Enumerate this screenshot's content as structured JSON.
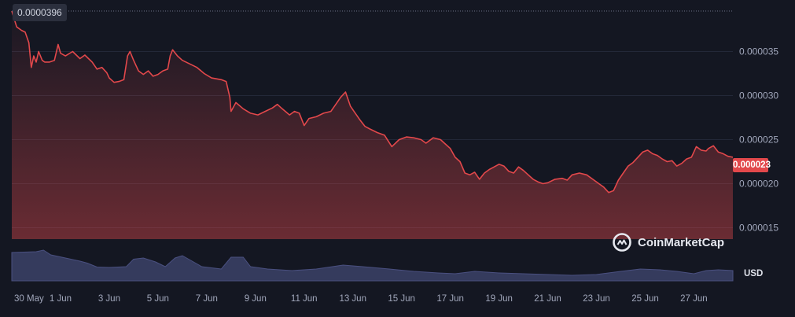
{
  "chart_data": {
    "type": "area",
    "currency": "USD",
    "max_label": "0.0000396",
    "last_label": "0.000023",
    "y_tick_labels": [
      "0.000015",
      "0.000020",
      "0.000025",
      "0.000030",
      "0.000035"
    ],
    "y_ticks": [
      1.5e-05,
      2e-05,
      2.5e-05,
      3e-05,
      3.5e-05
    ],
    "x_tick_labels": [
      "30 May",
      "1 Jun",
      "3 Jun",
      "5 Jun",
      "7 Jun",
      "9 Jun",
      "11 Jun",
      "13 Jun",
      "15 Jun",
      "17 Jun",
      "19 Jun",
      "21 Jun",
      "23 Jun",
      "25 Jun",
      "27 Jun"
    ],
    "x_range_days": [
      0,
      29.6
    ],
    "ylim": [
      1.37e-05,
      3.96e-05
    ],
    "price_series": [
      [
        0.0,
        3.96
      ],
      [
        0.2,
        3.78
      ],
      [
        0.4,
        3.74
      ],
      [
        0.55,
        3.72
      ],
      [
        0.7,
        3.6
      ],
      [
        0.8,
        3.32
      ],
      [
        0.9,
        3.45
      ],
      [
        1.0,
        3.38
      ],
      [
        1.1,
        3.5
      ],
      [
        1.25,
        3.4
      ],
      [
        1.35,
        3.38
      ],
      [
        1.55,
        3.38
      ],
      [
        1.75,
        3.4
      ],
      [
        1.9,
        3.58
      ],
      [
        2.0,
        3.48
      ],
      [
        2.2,
        3.45
      ],
      [
        2.5,
        3.5
      ],
      [
        2.8,
        3.42
      ],
      [
        3.0,
        3.46
      ],
      [
        3.3,
        3.38
      ],
      [
        3.5,
        3.3
      ],
      [
        3.7,
        3.32
      ],
      [
        3.9,
        3.26
      ],
      [
        4.0,
        3.2
      ],
      [
        4.2,
        3.15
      ],
      [
        4.4,
        3.16
      ],
      [
        4.6,
        3.18
      ],
      [
        4.75,
        3.45
      ],
      [
        4.85,
        3.5
      ],
      [
        5.0,
        3.4
      ],
      [
        5.2,
        3.28
      ],
      [
        5.4,
        3.24
      ],
      [
        5.6,
        3.28
      ],
      [
        5.8,
        3.22
      ],
      [
        6.0,
        3.24
      ],
      [
        6.2,
        3.28
      ],
      [
        6.4,
        3.3
      ],
      [
        6.5,
        3.45
      ],
      [
        6.6,
        3.52
      ],
      [
        6.8,
        3.45
      ],
      [
        7.0,
        3.4
      ],
      [
        7.3,
        3.36
      ],
      [
        7.6,
        3.32
      ],
      [
        7.9,
        3.25
      ],
      [
        8.2,
        3.2
      ],
      [
        8.6,
        3.18
      ],
      [
        8.8,
        3.16
      ],
      [
        8.95,
        2.98
      ],
      [
        9.0,
        2.82
      ],
      [
        9.2,
        2.92
      ],
      [
        9.5,
        2.85
      ],
      [
        9.8,
        2.8
      ],
      [
        10.1,
        2.78
      ],
      [
        10.4,
        2.82
      ],
      [
        10.7,
        2.86
      ],
      [
        10.9,
        2.9
      ],
      [
        11.1,
        2.85
      ],
      [
        11.4,
        2.78
      ],
      [
        11.6,
        2.82
      ],
      [
        11.8,
        2.8
      ],
      [
        12.0,
        2.66
      ],
      [
        12.2,
        2.74
      ],
      [
        12.5,
        2.76
      ],
      [
        12.8,
        2.8
      ],
      [
        13.1,
        2.82
      ],
      [
        13.3,
        2.9
      ],
      [
        13.5,
        2.98
      ],
      [
        13.7,
        3.04
      ],
      [
        13.9,
        2.88
      ],
      [
        14.1,
        2.8
      ],
      [
        14.3,
        2.72
      ],
      [
        14.5,
        2.65
      ],
      [
        14.7,
        2.62
      ],
      [
        15.0,
        2.58
      ],
      [
        15.3,
        2.55
      ],
      [
        15.6,
        2.42
      ],
      [
        15.9,
        2.5
      ],
      [
        16.2,
        2.53
      ],
      [
        16.5,
        2.52
      ],
      [
        16.8,
        2.5
      ],
      [
        17.0,
        2.46
      ],
      [
        17.3,
        2.52
      ],
      [
        17.6,
        2.5
      ],
      [
        17.8,
        2.45
      ],
      [
        18.0,
        2.4
      ],
      [
        18.2,
        2.3
      ],
      [
        18.4,
        2.25
      ],
      [
        18.6,
        2.12
      ],
      [
        18.8,
        2.1
      ],
      [
        19.0,
        2.13
      ],
      [
        19.2,
        2.05
      ],
      [
        19.4,
        2.12
      ],
      [
        19.6,
        2.16
      ],
      [
        19.8,
        2.19
      ],
      [
        20.0,
        2.22
      ],
      [
        20.2,
        2.2
      ],
      [
        20.4,
        2.14
      ],
      [
        20.6,
        2.12
      ],
      [
        20.8,
        2.19
      ],
      [
        21.0,
        2.15
      ],
      [
        21.2,
        2.1
      ],
      [
        21.4,
        2.05
      ],
      [
        21.6,
        2.02
      ],
      [
        21.8,
        2.0
      ],
      [
        22.0,
        2.01
      ],
      [
        22.3,
        2.05
      ],
      [
        22.6,
        2.06
      ],
      [
        22.8,
        2.04
      ],
      [
        23.0,
        2.1
      ],
      [
        23.3,
        2.12
      ],
      [
        23.6,
        2.1
      ],
      [
        23.9,
        2.04
      ],
      [
        24.1,
        2.0
      ],
      [
        24.3,
        1.96
      ],
      [
        24.5,
        1.9
      ],
      [
        24.7,
        1.92
      ],
      [
        24.9,
        2.04
      ],
      [
        25.1,
        2.12
      ],
      [
        25.3,
        2.2
      ],
      [
        25.5,
        2.24
      ],
      [
        25.7,
        2.3
      ],
      [
        25.9,
        2.36
      ],
      [
        26.1,
        2.38
      ],
      [
        26.3,
        2.34
      ],
      [
        26.5,
        2.32
      ],
      [
        26.7,
        2.28
      ],
      [
        26.9,
        2.25
      ],
      [
        27.1,
        2.26
      ],
      [
        27.3,
        2.2
      ],
      [
        27.5,
        2.23
      ],
      [
        27.7,
        2.28
      ],
      [
        27.9,
        2.3
      ],
      [
        28.1,
        2.42
      ],
      [
        28.3,
        2.38
      ],
      [
        28.5,
        2.37
      ],
      [
        28.6,
        2.4
      ],
      [
        28.8,
        2.43
      ],
      [
        29.0,
        2.36
      ],
      [
        29.2,
        2.34
      ],
      [
        29.4,
        2.31
      ],
      [
        29.6,
        2.3
      ]
    ],
    "volume_series": [
      [
        0,
        0.72
      ],
      [
        1,
        0.74
      ],
      [
        1.3,
        0.78
      ],
      [
        1.6,
        0.66
      ],
      [
        2.2,
        0.58
      ],
      [
        2.8,
        0.5
      ],
      [
        3.1,
        0.45
      ],
      [
        3.5,
        0.35
      ],
      [
        4.0,
        0.34
      ],
      [
        4.7,
        0.36
      ],
      [
        5.0,
        0.55
      ],
      [
        5.4,
        0.58
      ],
      [
        5.9,
        0.48
      ],
      [
        6.3,
        0.36
      ],
      [
        6.7,
        0.58
      ],
      [
        7.0,
        0.64
      ],
      [
        7.4,
        0.5
      ],
      [
        7.8,
        0.36
      ],
      [
        8.6,
        0.3
      ],
      [
        9.0,
        0.6
      ],
      [
        9.5,
        0.6
      ],
      [
        9.8,
        0.36
      ],
      [
        10.5,
        0.3
      ],
      [
        11.5,
        0.26
      ],
      [
        12.5,
        0.3
      ],
      [
        13.6,
        0.4
      ],
      [
        14.4,
        0.36
      ],
      [
        15.5,
        0.3
      ],
      [
        16.5,
        0.24
      ],
      [
        17.5,
        0.2
      ],
      [
        18.2,
        0.18
      ],
      [
        19.0,
        0.24
      ],
      [
        20.0,
        0.2
      ],
      [
        21.0,
        0.18
      ],
      [
        22.0,
        0.16
      ],
      [
        23.0,
        0.14
      ],
      [
        24.0,
        0.16
      ],
      [
        25.0,
        0.24
      ],
      [
        25.8,
        0.3
      ],
      [
        26.6,
        0.28
      ],
      [
        27.3,
        0.24
      ],
      [
        28.0,
        0.18
      ],
      [
        28.5,
        0.26
      ],
      [
        29.0,
        0.28
      ],
      [
        29.6,
        0.26
      ]
    ]
  },
  "brand": {
    "name": "CoinMarketCap"
  }
}
